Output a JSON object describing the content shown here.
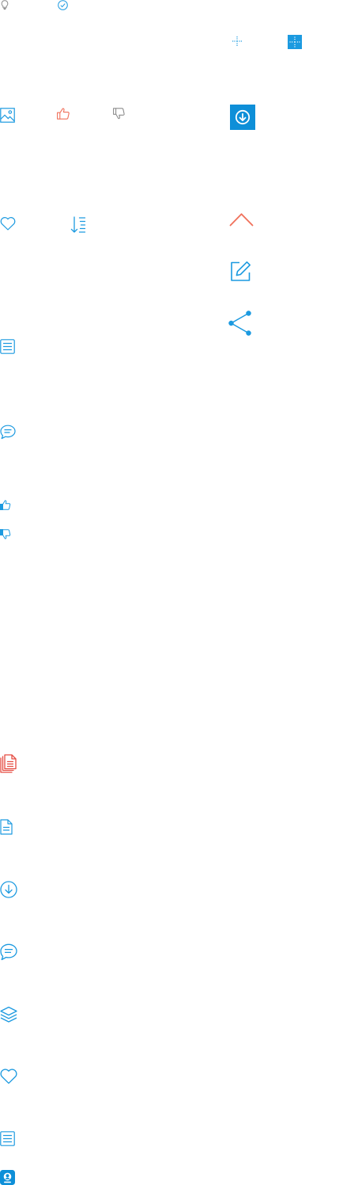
{
  "colors": {
    "blue": "#1c9ae0",
    "blue_dark": "#0e8fd8",
    "gray": "#8c8c8c",
    "red": "#f0705a"
  },
  "icons": [
    "lightbulb-icon",
    "check-circle-icon",
    "crosshair-icon",
    "crosshair-filled-icon",
    "image-icon",
    "thumbs-up-outline-icon",
    "thumbs-down-outline-icon",
    "download-filled-icon",
    "heart-icon",
    "sort-descending-icon",
    "chevron-up-icon",
    "edit-icon",
    "share-icon",
    "document-lines-icon",
    "comment-icon",
    "thumbs-up-small-icon",
    "thumbs-down-small-icon",
    "documents-stack-icon",
    "file-icon",
    "download-circle-icon",
    "comment-icon",
    "layers-icon",
    "heart-icon",
    "list-icon",
    "profile-badge-icon"
  ]
}
